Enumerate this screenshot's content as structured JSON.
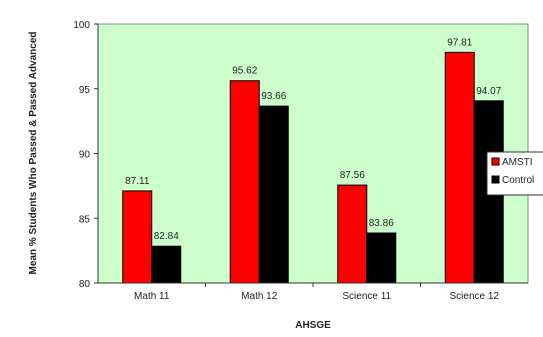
{
  "chart_data": {
    "type": "bar",
    "title": "",
    "xlabel": "AHSGE",
    "ylabel": "Mean % Students Who Passed & Passed Advanced",
    "ylim": [
      80,
      100
    ],
    "yticks": [
      80,
      85,
      90,
      95,
      100
    ],
    "categories": [
      "Math 11",
      "Math 12",
      "Science 11",
      "Science 12"
    ],
    "series": [
      {
        "name": "AMSTI",
        "color": "#ff0000",
        "values": [
          87.11,
          95.62,
          87.56,
          97.81
        ],
        "labels": [
          "87.11",
          "95.62",
          "87.56",
          "97.81"
        ]
      },
      {
        "name": "Control",
        "color": "#000000",
        "values": [
          82.84,
          93.66,
          83.86,
          94.07
        ],
        "labels": [
          "82.84",
          "93.66",
          "83.86",
          "94.07"
        ]
      }
    ],
    "plot_background": "#ccffcc",
    "grid": false,
    "legend_position": "right"
  }
}
